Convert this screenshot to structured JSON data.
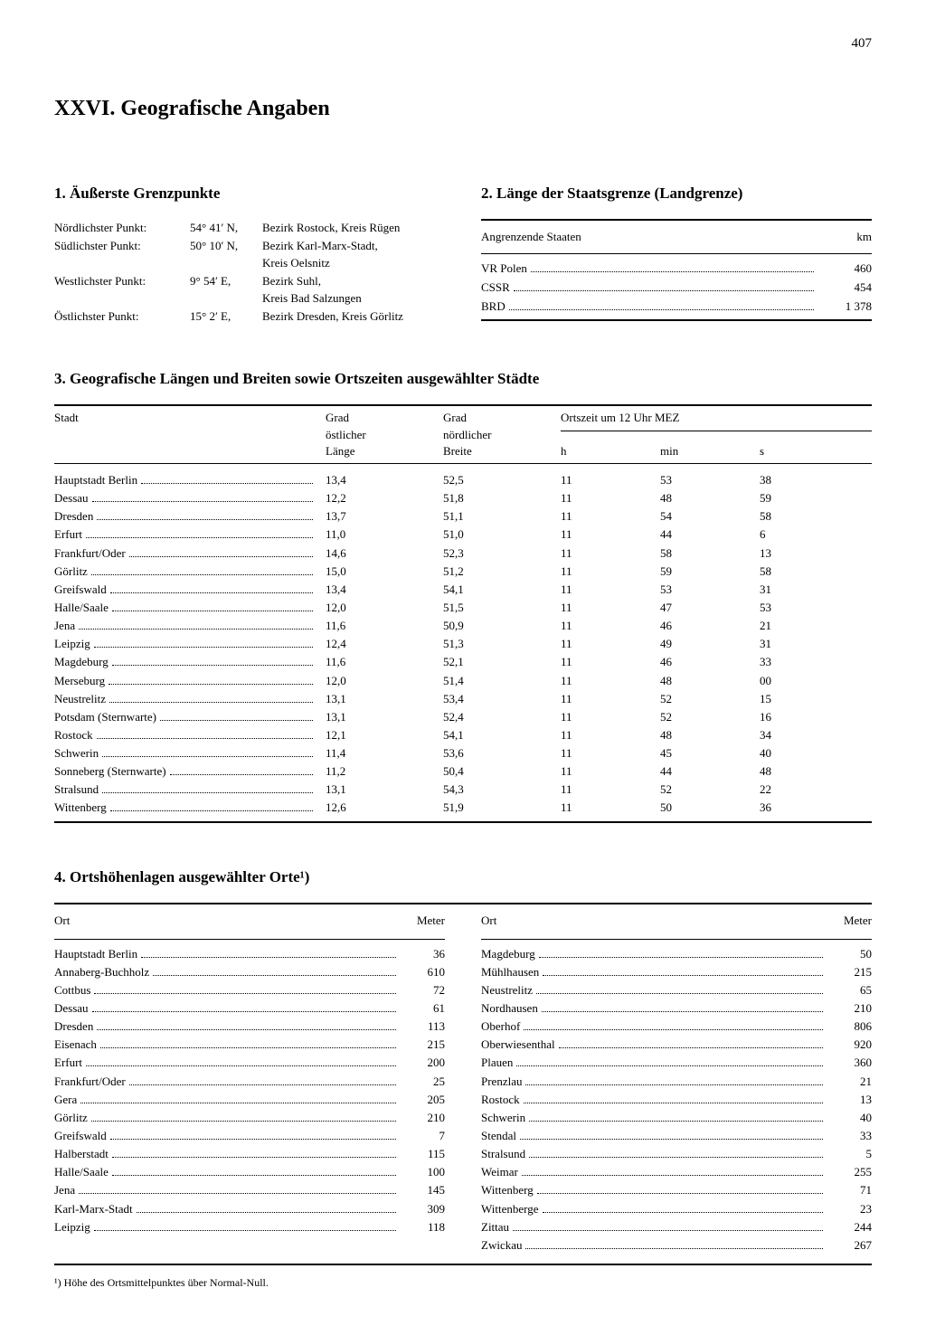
{
  "page_number": "407",
  "chapter_title": "XXVI. Geografische Angaben",
  "s1": {
    "heading": "1. Äußerste Grenzpunkte",
    "rows": [
      {
        "label": "Nördlichster Punkt:",
        "coord": "54° 41′ N,",
        "loc": "Bezirk Rostock, Kreis Rügen"
      },
      {
        "label": "Südlichster Punkt:",
        "coord": "50° 10′ N,",
        "loc": "Bezirk Karl-Marx-Stadt,"
      },
      {
        "label": "",
        "coord": "",
        "loc": "Kreis Oelsnitz"
      },
      {
        "label": "Westlichster Punkt:",
        "coord": "9° 54′ E,",
        "loc": "Bezirk Suhl,"
      },
      {
        "label": "",
        "coord": "",
        "loc": "Kreis Bad Salzungen"
      },
      {
        "label": "Östlichster Punkt:",
        "coord": "15°  2′ E,",
        "loc": "Bezirk Dresden, Kreis Görlitz"
      }
    ]
  },
  "s2": {
    "heading": "2. Länge der Staatsgrenze (Landgrenze)",
    "col1": "Angrenzende Staaten",
    "col2": "km",
    "rows": [
      {
        "name": "VR Polen",
        "val": "460"
      },
      {
        "name": "CSSR",
        "val": "454"
      },
      {
        "name": "BRD",
        "val": "1 378"
      }
    ]
  },
  "s3": {
    "heading": "3. Geografische Längen und Breiten sowie Ortszeiten ausgewählter Städte",
    "h_stadt": "Stadt",
    "h_laenge1": "Grad",
    "h_laenge2": "östlicher",
    "h_laenge3": "Länge",
    "h_breite1": "Grad",
    "h_breite2": "nördlicher",
    "h_breite3": "Breite",
    "h_orts": "Ortszeit um 12 Uhr MEZ",
    "h_h": "h",
    "h_min": "min",
    "h_s": "s",
    "rows": [
      {
        "stadt": "Hauptstadt Berlin",
        "l": "13,4",
        "b": "52,5",
        "h": "11",
        "m": "53",
        "s": "38"
      },
      {
        "stadt": "Dessau",
        "l": "12,2",
        "b": "51,8",
        "h": "11",
        "m": "48",
        "s": "59"
      },
      {
        "stadt": "Dresden",
        "l": "13,7",
        "b": "51,1",
        "h": "11",
        "m": "54",
        "s": "58"
      },
      {
        "stadt": "Erfurt",
        "l": "11,0",
        "b": "51,0",
        "h": "11",
        "m": "44",
        "s": "6"
      },
      {
        "stadt": "Frankfurt/Oder",
        "l": "14,6",
        "b": "52,3",
        "h": "11",
        "m": "58",
        "s": "13"
      },
      {
        "stadt": "Görlitz",
        "l": "15,0",
        "b": "51,2",
        "h": "11",
        "m": "59",
        "s": "58"
      },
      {
        "stadt": "Greifswald",
        "l": "13,4",
        "b": "54,1",
        "h": "11",
        "m": "53",
        "s": "31"
      },
      {
        "stadt": "Halle/Saale",
        "l": "12,0",
        "b": "51,5",
        "h": "11",
        "m": "47",
        "s": "53"
      },
      {
        "stadt": "Jena",
        "l": "11,6",
        "b": "50,9",
        "h": "11",
        "m": "46",
        "s": "21"
      },
      {
        "stadt": "Leipzig",
        "l": "12,4",
        "b": "51,3",
        "h": "11",
        "m": "49",
        "s": "31"
      },
      {
        "stadt": "Magdeburg",
        "l": "11,6",
        "b": "52,1",
        "h": "11",
        "m": "46",
        "s": "33"
      },
      {
        "stadt": "Merseburg",
        "l": "12,0",
        "b": "51,4",
        "h": "11",
        "m": "48",
        "s": "00"
      },
      {
        "stadt": "Neustrelitz",
        "l": "13,1",
        "b": "53,4",
        "h": "11",
        "m": "52",
        "s": "15"
      },
      {
        "stadt": "Potsdam (Sternwarte)",
        "l": "13,1",
        "b": "52,4",
        "h": "11",
        "m": "52",
        "s": "16"
      },
      {
        "stadt": "Rostock",
        "l": "12,1",
        "b": "54,1",
        "h": "11",
        "m": "48",
        "s": "34"
      },
      {
        "stadt": "Schwerin",
        "l": "11,4",
        "b": "53,6",
        "h": "11",
        "m": "45",
        "s": "40"
      },
      {
        "stadt": "Sonneberg (Sternwarte)",
        "l": "11,2",
        "b": "50,4",
        "h": "11",
        "m": "44",
        "s": "48"
      },
      {
        "stadt": "Stralsund",
        "l": "13,1",
        "b": "54,3",
        "h": "11",
        "m": "52",
        "s": "22"
      },
      {
        "stadt": "Wittenberg",
        "l": "12,6",
        "b": "51,9",
        "h": "11",
        "m": "50",
        "s": "36"
      }
    ]
  },
  "s4": {
    "heading": "4. Ortshöhenlagen ausgewählter Orte¹)",
    "col1": "Ort",
    "col2": "Meter",
    "left": [
      {
        "name": "Hauptstadt Berlin",
        "val": "36"
      },
      {
        "name": "Annaberg-Buchholz",
        "val": "610"
      },
      {
        "name": "Cottbus",
        "val": "72"
      },
      {
        "name": "Dessau",
        "val": "61"
      },
      {
        "name": "Dresden",
        "val": "113"
      },
      {
        "name": "Eisenach",
        "val": "215"
      },
      {
        "name": "Erfurt",
        "val": "200"
      },
      {
        "name": "Frankfurt/Oder",
        "val": "25"
      },
      {
        "name": "Gera",
        "val": "205"
      },
      {
        "name": "Görlitz",
        "val": "210"
      },
      {
        "name": "Greifswald",
        "val": "7"
      },
      {
        "name": "Halberstadt",
        "val": "115"
      },
      {
        "name": "Halle/Saale",
        "val": "100"
      },
      {
        "name": "Jena",
        "val": "145"
      },
      {
        "name": "Karl-Marx-Stadt",
        "val": "309"
      },
      {
        "name": "Leipzig",
        "val": "118"
      }
    ],
    "right": [
      {
        "name": "Magdeburg",
        "val": "50"
      },
      {
        "name": "Mühlhausen",
        "val": "215"
      },
      {
        "name": "Neustrelitz",
        "val": "65"
      },
      {
        "name": "Nordhausen",
        "val": "210"
      },
      {
        "name": "Oberhof",
        "val": "806"
      },
      {
        "name": "Oberwiesenthal",
        "val": "920"
      },
      {
        "name": "Plauen",
        "val": "360"
      },
      {
        "name": "Prenzlau",
        "val": "21"
      },
      {
        "name": "Rostock",
        "val": "13"
      },
      {
        "name": "Schwerin",
        "val": "40"
      },
      {
        "name": "Stendal",
        "val": "33"
      },
      {
        "name": "Stralsund",
        "val": "5"
      },
      {
        "name": "Weimar",
        "val": "255"
      },
      {
        "name": "Wittenberg",
        "val": "71"
      },
      {
        "name": "Wittenberge",
        "val": "23"
      },
      {
        "name": "Zittau",
        "val": "244"
      },
      {
        "name": "Zwickau",
        "val": "267"
      }
    ],
    "footnote": "¹) Höhe des Ortsmittelpunktes über Normal-Null."
  }
}
